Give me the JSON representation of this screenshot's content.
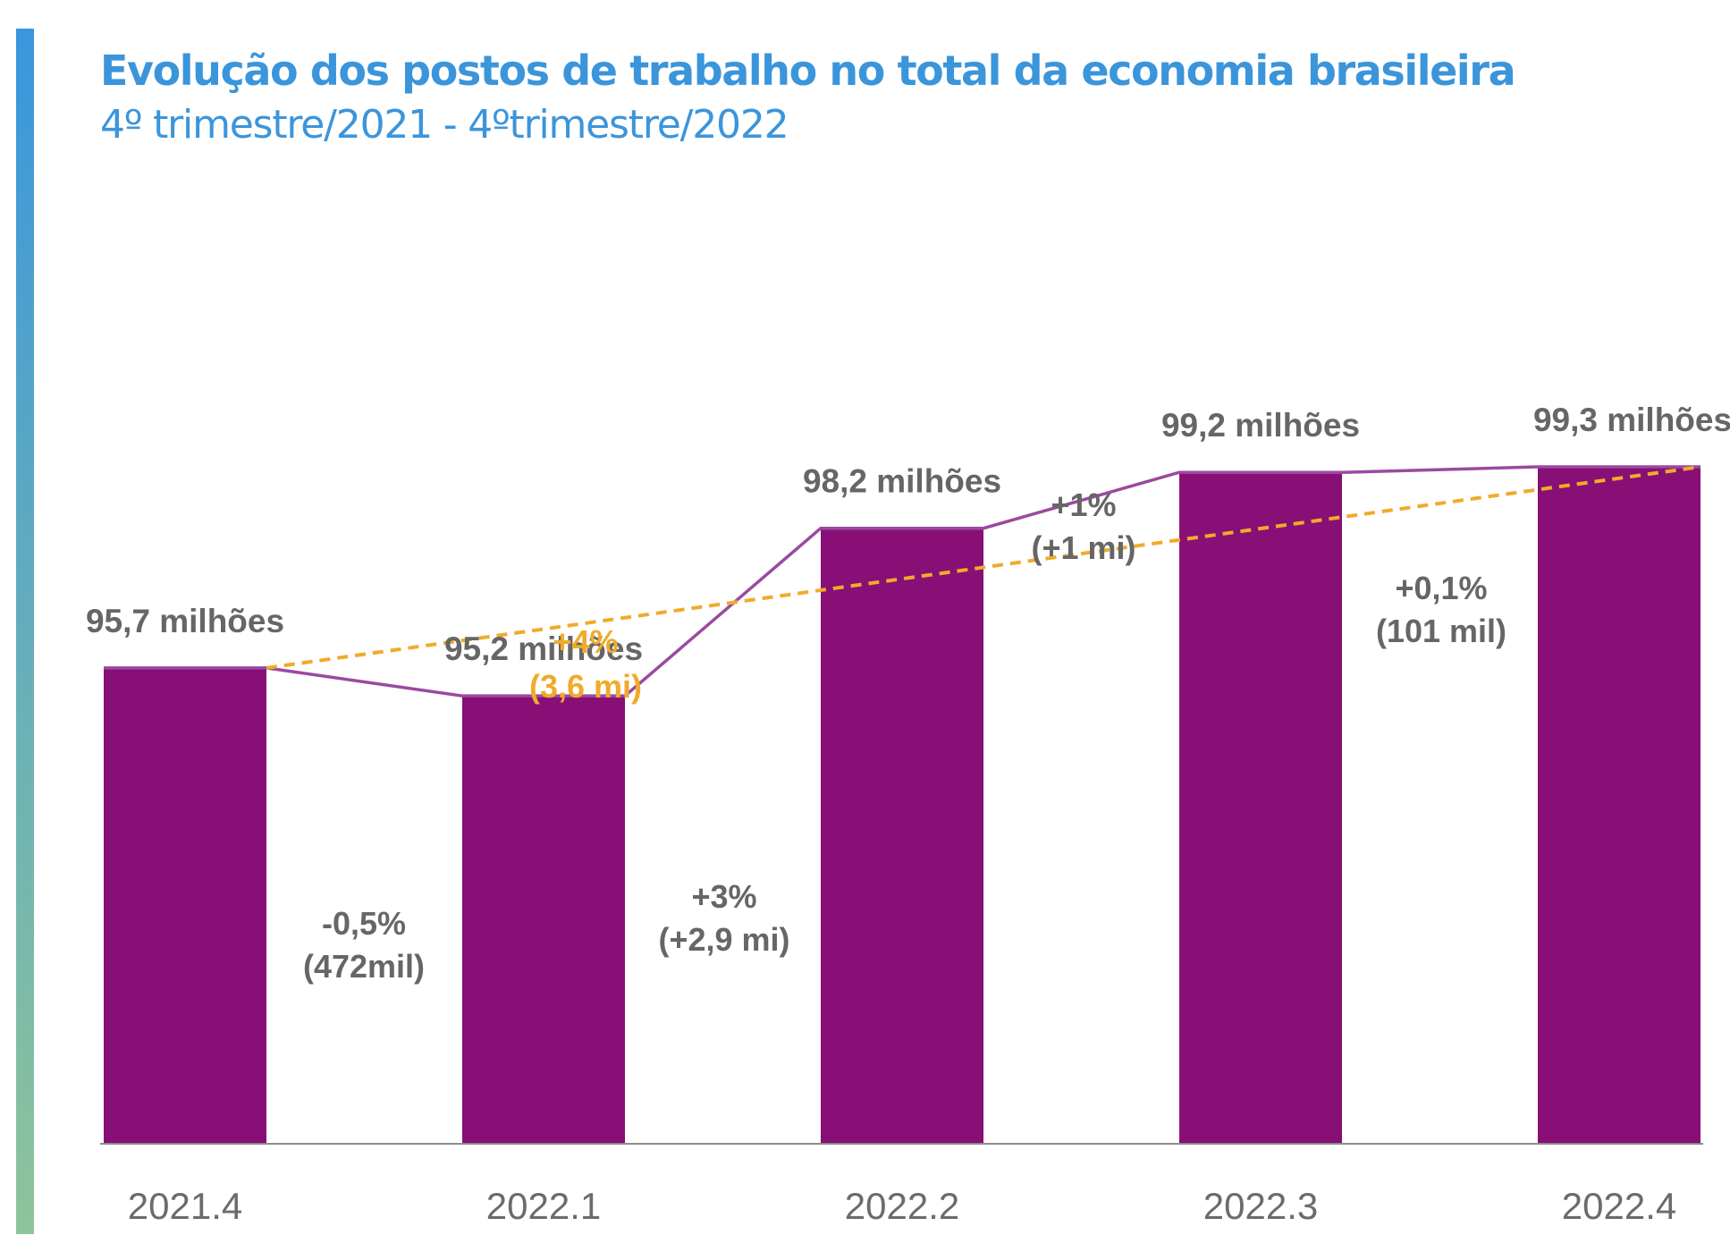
{
  "header": {
    "title": "Evolução dos postos de trabalho no total da economia brasileira",
    "subtitle": "4º trimestre/2021 - 4ºtrimestre/2022"
  },
  "colors": {
    "accent_top": "#3a96dd",
    "accent_bottom": "#8ec49a",
    "bar": "#870f76",
    "line": "#9a4a9f",
    "trend": "#f0ab2a",
    "label": "#666666"
  },
  "chart_data": {
    "type": "bar",
    "title": "Evolução dos postos de trabalho no total da economia brasileira",
    "subtitle": "4º trimestre/2021 - 4ºtrimestre/2022",
    "categories": [
      "2021.4",
      "2022.1",
      "2022.2",
      "2022.3",
      "2022.4"
    ],
    "values": [
      95.7,
      95.2,
      98.2,
      99.2,
      99.3
    ],
    "value_labels": [
      "95,7 milhões",
      "95,2 milhões",
      "98,2 milhões",
      "99,2 milhões",
      "99,3 milhões"
    ],
    "unit": "milhões",
    "changes": [
      {
        "from": "2021.4",
        "to": "2022.1",
        "pct": "-0,5%",
        "abs": "(472mil)"
      },
      {
        "from": "2022.1",
        "to": "2022.2",
        "pct": "+3%",
        "abs": "(+2,9 mi)"
      },
      {
        "from": "2022.2",
        "to": "2022.3",
        "pct": "+1%",
        "abs": "(+1 mi)"
      },
      {
        "from": "2022.3",
        "to": "2022.4",
        "pct": "+0,1%",
        "abs": "(101 mil)"
      }
    ],
    "trend": {
      "from": "2021.4",
      "to": "2022.4",
      "pct": "+4%",
      "abs": "(3,6 mi)"
    },
    "xlabel": "",
    "ylabel": "",
    "ylim": [
      87.2,
      99.3
    ],
    "grid": false,
    "legend": "none"
  }
}
